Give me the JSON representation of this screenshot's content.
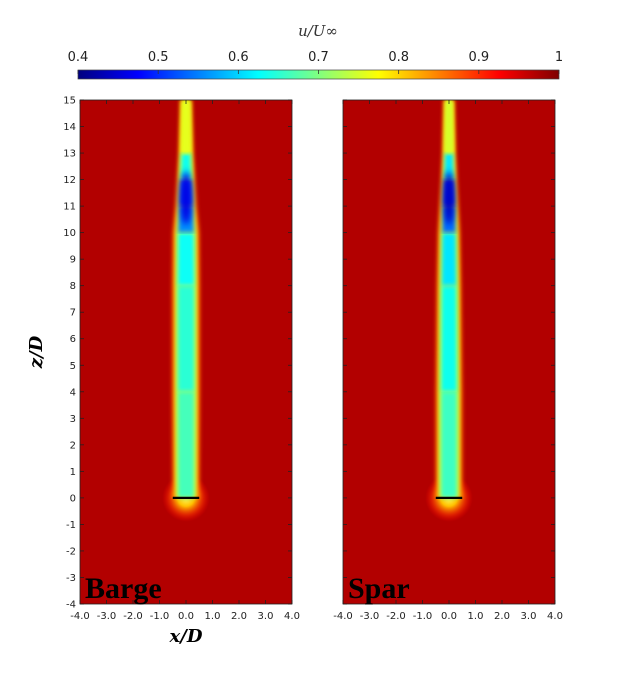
{
  "chart_data": {
    "type": "heatmap",
    "colorbar": {
      "title": "u/U∞",
      "min": 0.4,
      "max": 1,
      "tick_labels": [
        "0.4",
        "0.5",
        "0.6",
        "0.7",
        "0.8",
        "0.9",
        "1"
      ],
      "colormap": [
        "#00007f",
        "#0000ff",
        "#0080ff",
        "#00ffff",
        "#80ff80",
        "#ffff00",
        "#ff8000",
        "#ff0000",
        "#7f0000"
      ]
    },
    "xlabel": "x/D",
    "ylabel": "z/D",
    "xlim": [
      -4.0,
      4.0
    ],
    "ylim": [
      -4,
      15
    ],
    "x_tick_labels": [
      "-4.0",
      "-3.0",
      "-2.0",
      "-1.0",
      "0.0",
      "1.0",
      "2.0",
      "3.0",
      "4.0"
    ],
    "y_tick_labels": [
      "-4",
      "-3",
      "-2",
      "-1",
      "0",
      "1",
      "2",
      "3",
      "4",
      "5",
      "6",
      "7",
      "8",
      "9",
      "10",
      "11",
      "12",
      "13",
      "14",
      "15"
    ],
    "background_value": 0.97,
    "rotor": {
      "x": [
        -0.5,
        0.5
      ],
      "z": 0
    },
    "panels": [
      {
        "label": "Barge",
        "wake_profile": [
          {
            "z": 0,
            "half_width": 0.5,
            "core_value": 0.67
          },
          {
            "z": 4,
            "half_width": 0.52,
            "core_value": 0.66
          },
          {
            "z": 8,
            "half_width": 0.52,
            "core_value": 0.64
          },
          {
            "z": 10,
            "half_width": 0.5,
            "core_value": 0.62
          },
          {
            "z": 11,
            "half_width": 0.4,
            "core_value": 0.5
          },
          {
            "z": 12,
            "half_width": 0.34,
            "core_value": 0.55
          },
          {
            "z": 13,
            "half_width": 0.28,
            "core_value": 0.72
          },
          {
            "z": 15,
            "half_width": 0.22,
            "core_value": 0.8
          }
        ]
      },
      {
        "label": "Spar",
        "wake_profile": [
          {
            "z": 0,
            "half_width": 0.5,
            "core_value": 0.67
          },
          {
            "z": 4,
            "half_width": 0.5,
            "core_value": 0.65
          },
          {
            "z": 8,
            "half_width": 0.46,
            "core_value": 0.62
          },
          {
            "z": 10,
            "half_width": 0.42,
            "core_value": 0.6
          },
          {
            "z": 11,
            "half_width": 0.36,
            "core_value": 0.48
          },
          {
            "z": 12,
            "half_width": 0.3,
            "core_value": 0.52
          },
          {
            "z": 13,
            "half_width": 0.25,
            "core_value": 0.7
          },
          {
            "z": 15,
            "half_width": 0.2,
            "core_value": 0.8
          }
        ]
      }
    ]
  }
}
